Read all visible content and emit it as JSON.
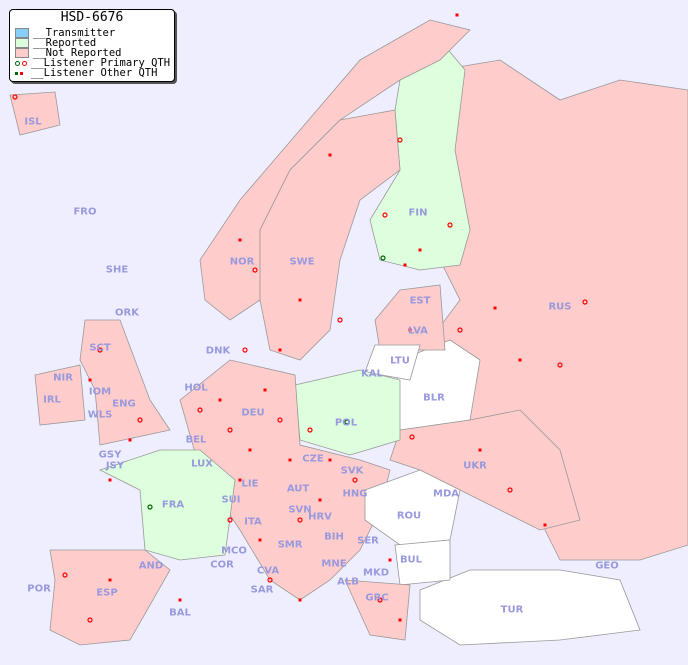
{
  "legend": {
    "title": "HSD-6676",
    "items": [
      {
        "label": "__Transmitter",
        "color": "#87cefa"
      },
      {
        "label": "__Reported",
        "color": "#ddffdd"
      },
      {
        "label": "__Not Reported",
        "color": "#ffcccc"
      },
      {
        "label": "__Listener Primary QTH",
        "colors": [
          "#006600",
          "#ff0000"
        ]
      },
      {
        "label": "__Listener Other QTH",
        "colors": [
          "#006600",
          "#ff0000"
        ]
      }
    ]
  },
  "colors": {
    "sea": "#eeeeff",
    "reported": "#ddffdd",
    "not_reported": "#ffcccc",
    "no_data": "#ffffff",
    "label": "#9999dd",
    "listener": "#ff0000",
    "listener_reported": "#006600"
  },
  "countries": {
    "reported": [
      "FIN",
      "POL",
      "FRA"
    ],
    "not_reported": [
      "ISL",
      "NOR",
      "SWE",
      "EST",
      "LVA",
      "RUS",
      "DNK",
      "IRL",
      "ENG",
      "SCT",
      "WLS",
      "NIR",
      "DEU",
      "HOL",
      "BEL",
      "LUX",
      "CZE",
      "SVK",
      "UKR",
      "SUI",
      "AUT",
      "HNG",
      "SVN",
      "HRV",
      "ITA",
      "ESP",
      "POR",
      "GRC",
      "BIH",
      "SER",
      "MNE",
      "ALB",
      "MKD"
    ],
    "labels": [
      "ISL",
      "FRO",
      "SHE",
      "ORK",
      "NOR",
      "SWE",
      "FIN",
      "EST",
      "LVA",
      "LTU",
      "RUS",
      "DNK",
      "KAL",
      "BLR",
      "HOL",
      "IOM",
      "WLS",
      "IRL",
      "NIR",
      "SCT",
      "ENG",
      "GSY",
      "JSY",
      "BEL",
      "LUX",
      "DEU",
      "POL",
      "CZE",
      "SVK",
      "UKR",
      "FRA",
      "SUI",
      "LIE",
      "AUT",
      "HNG",
      "MDA",
      "SVN",
      "HRV",
      "ROU",
      "ITA",
      "BIH",
      "SER",
      "MCO",
      "COR",
      "CVA",
      "SMR",
      "MNE",
      "BUL",
      "GEO",
      "AND",
      "ALB",
      "MKD",
      "POR",
      "ESP",
      "SAR",
      "BAL",
      "GRC",
      "TUR"
    ]
  }
}
